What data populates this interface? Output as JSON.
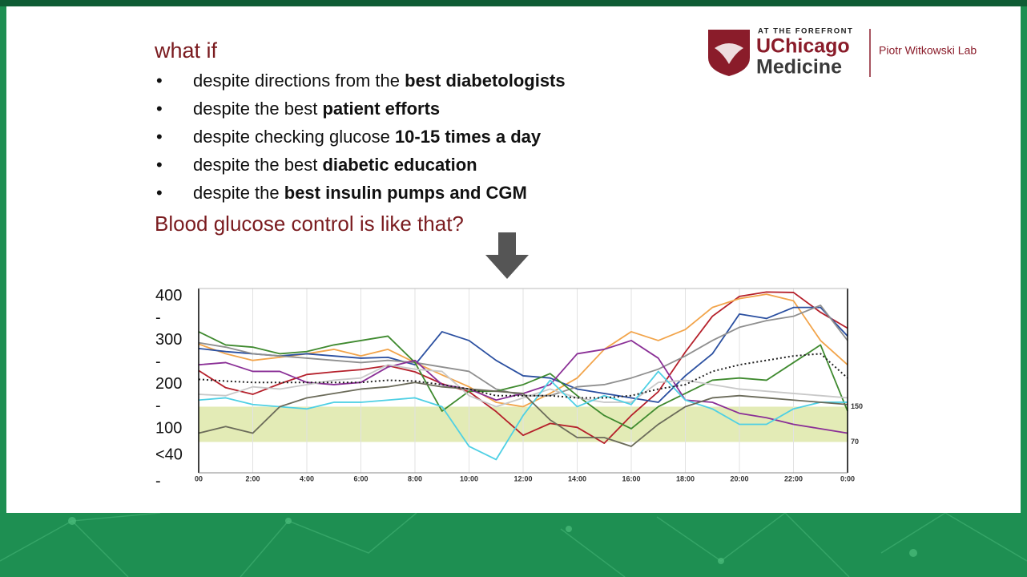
{
  "slide": {
    "heading": "what if",
    "bullets": [
      {
        "text": "despite directions from the ",
        "bold": "best diabetologists"
      },
      {
        "text": "despite the best ",
        "bold": "patient efforts"
      },
      {
        "text": "despite checking glucose ",
        "bold": "10-15 times a day"
      },
      {
        "text": "despite the best ",
        "bold": "diabetic education"
      },
      {
        "text": "despite the ",
        "bold": "best insulin pumps and CGM"
      }
    ],
    "question": "Blood glucose control is like that?",
    "logo": {
      "tagline": "AT THE FOREFRONT",
      "name1": "UChicago",
      "name2": "Medicine",
      "lab": "Piotr Witkowski Lab"
    }
  },
  "chart_data": {
    "type": "line",
    "x": [
      0,
      1,
      2,
      3,
      4,
      5,
      6,
      7,
      8,
      9,
      10,
      11,
      12,
      13,
      14,
      15,
      16,
      17,
      18,
      19,
      20,
      21,
      22,
      23,
      24
    ],
    "xlim": [
      0,
      24
    ],
    "xticks": [
      {
        "value": 0,
        "label": "00"
      },
      {
        "value": 2,
        "label": "2:00"
      },
      {
        "value": 4,
        "label": "4:00"
      },
      {
        "value": 6,
        "label": "6:00"
      },
      {
        "value": 8,
        "label": "8:00"
      },
      {
        "value": 10,
        "label": "10:00"
      },
      {
        "value": 12,
        "label": "12:00"
      },
      {
        "value": 14,
        "label": "14:00"
      },
      {
        "value": 16,
        "label": "16:00"
      },
      {
        "value": 18,
        "label": "18:00"
      },
      {
        "value": 20,
        "label": "20:00"
      },
      {
        "value": 22,
        "label": "22:00"
      },
      {
        "value": 24,
        "label": "0:00"
      }
    ],
    "ylim": [
      0,
      418
    ],
    "yticks": [
      400,
      {
        "value": 350,
        "label": "-"
      },
      300,
      {
        "value": 250,
        "label": "-"
      },
      200,
      {
        "value": 150,
        "label": "-"
      },
      100,
      {
        "value": 40,
        "label": "<40"
      },
      {
        "value": -20,
        "label": "-"
      }
    ],
    "y2lim": [
      0,
      418
    ],
    "y2ticks": [
      150,
      70
    ],
    "band_color": "#e3ebb6",
    "grid": true,
    "series": [
      {
        "color": "#b5202b",
        "values": [
          232,
          193,
          178,
          202,
          223,
          229,
          234,
          243,
          229,
          202,
          184,
          139,
          85,
          112,
          103,
          67,
          130,
          184,
          274,
          355,
          400,
          410,
          409,
          364,
          328
        ]
      },
      {
        "color": "#f2a44a",
        "values": [
          292,
          270,
          255,
          262,
          270,
          280,
          265,
          280,
          250,
          222,
          195,
          160,
          150,
          180,
          215,
          280,
          320,
          300,
          325,
          375,
          395,
          405,
          390,
          300,
          245
        ]
      },
      {
        "color": "#2a4fa0",
        "values": [
          282,
          275,
          270,
          265,
          270,
          265,
          260,
          262,
          245,
          320,
          300,
          255,
          220,
          215,
          190,
          180,
          170,
          160,
          220,
          270,
          360,
          350,
          375,
          375,
          310
        ]
      },
      {
        "color": "#8f8f8f",
        "values": [
          295,
          285,
          270,
          265,
          260,
          255,
          250,
          255,
          250,
          240,
          230,
          190,
          175,
          175,
          195,
          200,
          215,
          235,
          265,
          300,
          330,
          345,
          355,
          380,
          300
        ]
      },
      {
        "color": "#3f8a2f",
        "values": [
          320,
          290,
          285,
          270,
          275,
          290,
          300,
          310,
          250,
          140,
          185,
          185,
          200,
          225,
          175,
          130,
          100,
          150,
          180,
          210,
          215,
          210,
          250,
          290,
          140
        ]
      },
      {
        "color": "#8a2f96",
        "values": [
          245,
          250,
          230,
          230,
          205,
          200,
          205,
          240,
          255,
          200,
          190,
          165,
          180,
          200,
          270,
          280,
          300,
          260,
          165,
          160,
          135,
          125,
          110,
          100,
          90
        ]
      },
      {
        "color": "#c8c8c8",
        "values": [
          178,
          175,
          195,
          190,
          200,
          210,
          215,
          245,
          235,
          230,
          175,
          150,
          170,
          190,
          170,
          160,
          160,
          205,
          210,
          200,
          190,
          185,
          180,
          175,
          170
        ]
      },
      {
        "color": "#4fd0e4",
        "values": [
          165,
          170,
          155,
          150,
          145,
          160,
          160,
          165,
          170,
          150,
          60,
          30,
          130,
          210,
          150,
          175,
          155,
          230,
          165,
          145,
          110,
          110,
          145,
          160,
          160
        ]
      },
      {
        "color": "#6b6b5a",
        "values": [
          90,
          105,
          90,
          150,
          170,
          180,
          190,
          195,
          205,
          195,
          190,
          185,
          180,
          120,
          80,
          80,
          60,
          110,
          150,
          170,
          175,
          170,
          165,
          160,
          155
        ]
      },
      {
        "color": "#222222",
        "dash": true,
        "values": [
          212,
          208,
          205,
          205,
          205,
          205,
          205,
          210,
          208,
          200,
          190,
          175,
          175,
          175,
          170,
          170,
          175,
          190,
          200,
          230,
          245,
          255,
          265,
          270,
          215
        ]
      }
    ]
  }
}
